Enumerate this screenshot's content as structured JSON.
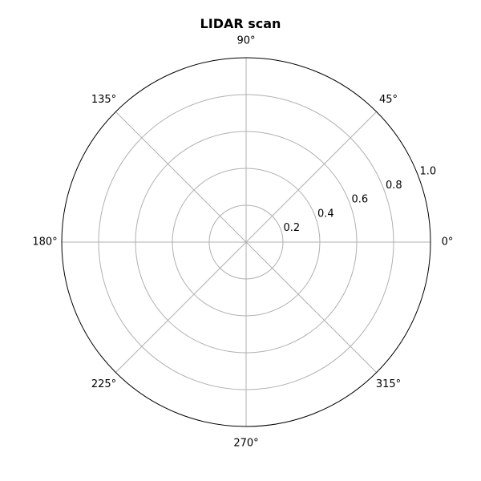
{
  "chart_data": {
    "type": "polar",
    "title": "LIDAR scan",
    "angle_tick_labels": [
      "0°",
      "45°",
      "90°",
      "135°",
      "180°",
      "225°",
      "270°",
      "315°"
    ],
    "angle_ticks_deg": [
      0,
      45,
      90,
      135,
      180,
      225,
      270,
      315
    ],
    "radial_ticks": [
      0.2,
      0.4,
      0.6,
      0.8,
      1.0
    ],
    "radial_tick_labels": [
      "0.2",
      "0.4",
      "0.6",
      "0.8",
      "1.0"
    ],
    "rlim": [
      0,
      1.0
    ],
    "grid": true,
    "series": [],
    "colors": {
      "grid": "#b0b0b0",
      "spine": "#000000",
      "text": "#000000"
    }
  }
}
